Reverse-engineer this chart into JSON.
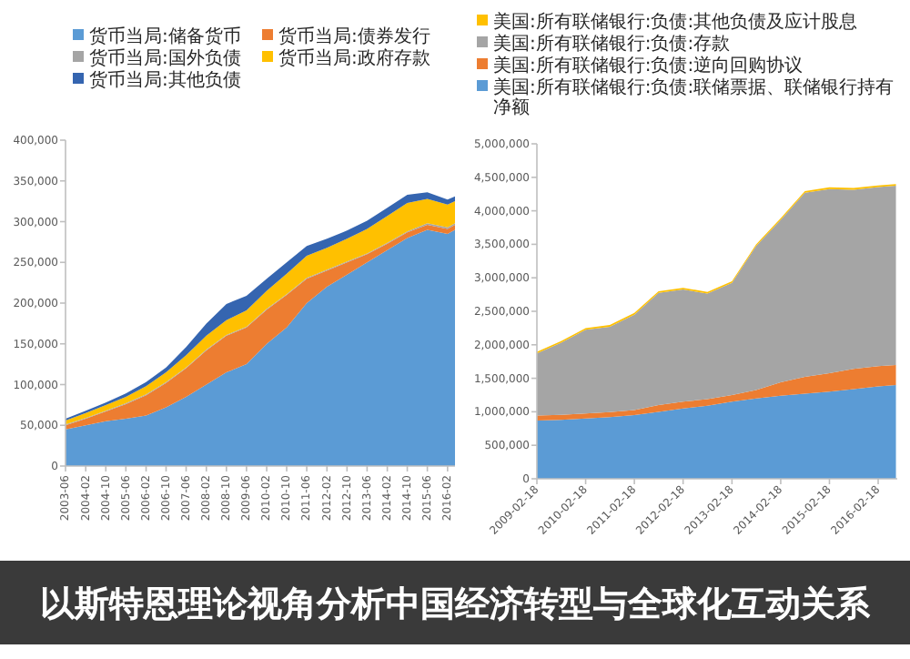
{
  "chart_data": [
    {
      "type": "area",
      "stacked": true,
      "legend": "top",
      "annotations": [
        "以斯特恩理论视角分析中国经济转型与全球化互动关系"
      ],
      "x": [
        "2003-06",
        "2004-02",
        "2004-10",
        "2005-06",
        "2006-02",
        "2006-10",
        "2007-06",
        "2008-02",
        "2008-10",
        "2009-06",
        "2010-02",
        "2010-10",
        "2011-06",
        "2012-02",
        "2012-10",
        "2013-06",
        "2014-02",
        "2014-10",
        "2015-06",
        "2016-02",
        "2016-05"
      ],
      "xlim": [
        "2003-06",
        "2016-05"
      ],
      "xticks": [
        {
          "value": "2003-06",
          "label": "2003-06"
        },
        {
          "value": "2004-02",
          "label": "2004-02"
        },
        {
          "value": "2004-10",
          "label": "2004-10"
        },
        {
          "value": "2005-06",
          "label": "2005-06"
        },
        {
          "value": "2006-02",
          "label": "2006-02"
        },
        {
          "value": "2006-10",
          "label": "2006-10"
        },
        {
          "value": "2007-06",
          "label": "2007-06"
        },
        {
          "value": "2008-02",
          "label": "2008-02"
        },
        {
          "value": "2008-10",
          "label": "2008-10"
        },
        {
          "value": "2009-06",
          "label": "2009-06"
        },
        {
          "value": "2010-02",
          "label": "2010-02"
        },
        {
          "value": "2010-10",
          "label": "2010-10"
        },
        {
          "value": "2011-06",
          "label": "2011-06"
        },
        {
          "value": "2012-02",
          "label": "2012-02"
        },
        {
          "value": "2012-10",
          "label": "2012-10"
        },
        {
          "value": "2013-06",
          "label": "2013-06"
        },
        {
          "value": "2014-02",
          "label": "2014-02"
        },
        {
          "value": "2014-10",
          "label": "2014-10"
        },
        {
          "value": "2015-06",
          "label": "2015-06"
        },
        {
          "value": "2016-02",
          "label": "2016-02"
        }
      ],
      "ylim": [
        0,
        400000
      ],
      "yticks": [
        0,
        {
          "value": 50000,
          "label": "50,000"
        },
        {
          "value": 100000,
          "label": "100,000"
        },
        {
          "value": 150000,
          "label": "150,000"
        },
        {
          "value": 200000,
          "label": "200,000"
        },
        {
          "value": 250000,
          "label": "250,000"
        },
        {
          "value": 300000,
          "label": "300,000"
        },
        {
          "value": 350000,
          "label": "350,000"
        },
        {
          "value": 400000,
          "label": "400,000"
        }
      ],
      "series": [
        {
          "name": "货币当局:储备货币",
          "color": "#5b9bd5",
          "values": [
            45000,
            50000,
            55000,
            58000,
            62000,
            72000,
            85000,
            100000,
            115000,
            125000,
            150000,
            170000,
            200000,
            220000,
            235000,
            250000,
            265000,
            280000,
            290000,
            285000,
            290000
          ]
        },
        {
          "name": "货币当局:债券发行",
          "color": "#ed7d31",
          "values": [
            5000,
            8000,
            12000,
            18000,
            25000,
            30000,
            35000,
            42000,
            45000,
            45000,
            42000,
            40000,
            30000,
            20000,
            15000,
            10000,
            8000,
            7000,
            6000,
            6000,
            6000
          ]
        },
        {
          "name": "货币当局:国外负债",
          "color": "#a5a5a5",
          "values": [
            1000,
            1000,
            1000,
            1000,
            1000,
            1000,
            1000,
            1000,
            1000,
            1000,
            1000,
            1000,
            1000,
            1000,
            1000,
            1000,
            1000,
            1000,
            2000,
            2000,
            2000
          ]
        },
        {
          "name": "货币当局:政府存款",
          "color": "#ffc000",
          "values": [
            5000,
            6000,
            7000,
            8000,
            10000,
            12000,
            15000,
            17000,
            18000,
            20000,
            22000,
            25000,
            27000,
            27000,
            28000,
            30000,
            33000,
            35000,
            30000,
            28000,
            27000
          ]
        },
        {
          "name": "货币当局:其他负债",
          "color": "#3565b0",
          "values": [
            2000,
            3000,
            3000,
            4000,
            5000,
            6000,
            10000,
            15000,
            20000,
            18000,
            15000,
            14000,
            12000,
            11000,
            10000,
            10000,
            10000,
            10000,
            8000,
            6000,
            6000
          ]
        }
      ]
    },
    {
      "type": "area",
      "stacked": true,
      "legend": "top left",
      "x": [
        "2009-02-18",
        "2009-08-18",
        "2010-02-18",
        "2010-08-18",
        "2011-02-18",
        "2011-08-18",
        "2012-02-18",
        "2012-08-18",
        "2013-02-18",
        "2013-08-18",
        "2014-02-18",
        "2014-08-18",
        "2015-02-18",
        "2015-08-18",
        "2016-02-18",
        "2016-06-30"
      ],
      "xlim": [
        "2009-02-18",
        "2016-07-10"
      ],
      "xticks": [
        {
          "value": "2009-02-18",
          "label": "2009-02-18"
        },
        {
          "value": "2010-02-18",
          "label": "2010-02-18"
        },
        {
          "value": "2011-02-18",
          "label": "2011-02-18"
        },
        {
          "value": "2012-02-18",
          "label": "2012-02-18"
        },
        {
          "value": "2013-02-18",
          "label": "2013-02-18"
        },
        {
          "value": "2014-02-18",
          "label": "2014-02-18"
        },
        {
          "value": "2015-02-18",
          "label": "2015-02-18"
        },
        {
          "value": "2016-02-18",
          "label": "2016-02-18"
        }
      ],
      "ylim": [
        0,
        5000000
      ],
      "yticks": [
        0,
        {
          "value": 500000,
          "label": "500,000"
        },
        {
          "value": 1000000,
          "label": "1,000,000"
        },
        {
          "value": 1500000,
          "label": "1,500,000"
        },
        {
          "value": 2000000,
          "label": "2,000,000"
        },
        {
          "value": 2500000,
          "label": "2,500,000"
        },
        {
          "value": 3000000,
          "label": "3,000,000"
        },
        {
          "value": 3500000,
          "label": "3,500,000"
        },
        {
          "value": 4000000,
          "label": "4,000,000"
        },
        {
          "value": 4500000,
          "label": "4,500,000"
        },
        {
          "value": 5000000,
          "label": "5,000,000"
        }
      ],
      "series": [
        {
          "name": "美国:所有联储银行:负债:联储票据、联储银行持有净额",
          "color": "#5b9bd5",
          "values": [
            870000,
            880000,
            900000,
            920000,
            950000,
            1000000,
            1050000,
            1090000,
            1150000,
            1200000,
            1240000,
            1270000,
            1300000,
            1340000,
            1380000,
            1400000
          ]
        },
        {
          "name": "美国:所有联储银行:负债:逆向回购协议",
          "color": "#ed7d31",
          "values": [
            75000,
            75000,
            75000,
            75000,
            75000,
            100000,
            100000,
            100000,
            100000,
            125000,
            200000,
            250000,
            275000,
            300000,
            300000,
            300000
          ]
        },
        {
          "name": "美国:所有联储银行:负债:存款",
          "color": "#a5a5a5",
          "values": [
            925000,
            1075000,
            1250000,
            1275000,
            1425000,
            1675000,
            1675000,
            1575000,
            1675000,
            2150000,
            2425000,
            2750000,
            2750000,
            2675000,
            2675000,
            2675000
          ]
        },
        {
          "name": "美国:所有联储银行:负债:其他负债及应计股息",
          "color": "#ffc000",
          "values": [
            25000,
            25000,
            25000,
            25000,
            25000,
            25000,
            25000,
            25000,
            25000,
            25000,
            25000,
            25000,
            25000,
            25000,
            25000,
            25000
          ]
        }
      ]
    }
  ]
}
